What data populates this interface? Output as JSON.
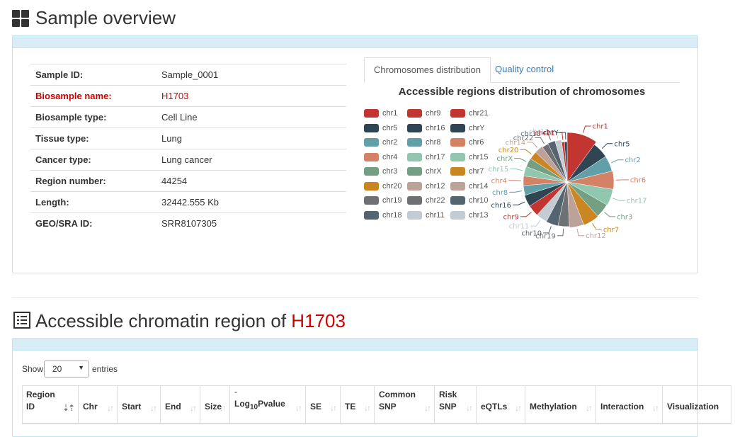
{
  "overview": {
    "title": "Sample overview",
    "info": [
      {
        "label": "Sample ID:",
        "value": "Sample_0001",
        "highlight": false
      },
      {
        "label": "Biosample name:",
        "value": "H1703",
        "highlight": true
      },
      {
        "label": "Biosample type:",
        "value": "Cell Line",
        "highlight": false
      },
      {
        "label": "Tissue type:",
        "value": "Lung",
        "highlight": false
      },
      {
        "label": "Cancer type:",
        "value": "Lung cancer",
        "highlight": false
      },
      {
        "label": "Region number:",
        "value": "44254",
        "highlight": false
      },
      {
        "label": "Length:",
        "value": "32442.555 Kb",
        "highlight": false
      },
      {
        "label": "GEO/SRA ID:",
        "value": "SRR8107305",
        "highlight": false
      }
    ],
    "tabs": [
      {
        "label": "Chromosomes distribution",
        "active": true
      },
      {
        "label": "Quality control",
        "active": false
      }
    ]
  },
  "chart_data": {
    "type": "pie",
    "title": "Accessible regions distribution of chromosomes",
    "legend_position": "left",
    "slices": [
      {
        "name": "chr1",
        "value": 4110,
        "color": "#c23531"
      },
      {
        "name": "chr5",
        "value": 2350,
        "color": "#2f4554"
      },
      {
        "name": "chr2",
        "value": 2300,
        "color": "#61a0a8"
      },
      {
        "name": "chr6",
        "value": 2600,
        "color": "#d48265"
      },
      {
        "name": "chr17",
        "value": 2390,
        "color": "#91c7ae"
      },
      {
        "name": "chr3",
        "value": 2100,
        "color": "#749f83"
      },
      {
        "name": "chr7",
        "value": 2360,
        "color": "#ca8622"
      },
      {
        "name": "chr12",
        "value": 2100,
        "color": "#bda29a"
      },
      {
        "name": "chr19",
        "value": 1700,
        "color": "#6e7074"
      },
      {
        "name": "chr10",
        "value": 1800,
        "color": "#546570"
      },
      {
        "name": "chr11",
        "value": 1700,
        "color": "#c4ccd3"
      },
      {
        "name": "chr9",
        "value": 1700,
        "color": "#c23531"
      },
      {
        "name": "chr16",
        "value": 1740,
        "color": "#2f4554"
      },
      {
        "name": "chr8",
        "value": 1470,
        "color": "#61a0a8"
      },
      {
        "name": "chr4",
        "value": 1450,
        "color": "#d48265"
      },
      {
        "name": "chr15",
        "value": 1450,
        "color": "#91c7ae"
      },
      {
        "name": "chrX",
        "value": 1350,
        "color": "#749f83"
      },
      {
        "name": "chr20",
        "value": 1250,
        "color": "#ca8622"
      },
      {
        "name": "chr14",
        "value": 1300,
        "color": "#bda29a"
      },
      {
        "name": "chr22",
        "value": 1000,
        "color": "#6e7074"
      },
      {
        "name": "chr18",
        "value": 1150,
        "color": "#546570"
      },
      {
        "name": "chr13",
        "value": 1000,
        "color": "#c4ccd3"
      },
      {
        "name": "chr21",
        "value": 450,
        "color": "#c23531"
      },
      {
        "name": "chrY",
        "value": 450,
        "color": "#2f4554"
      }
    ],
    "legend_order": [
      "chr1",
      "chr9",
      "chr21",
      "chr5",
      "chr16",
      "chrY",
      "chr2",
      "chr8",
      "chr6",
      "chr4",
      "chr17",
      "chr15",
      "chr3",
      "chrX",
      "chr7",
      "chr20",
      "chr12",
      "chr14",
      "chr19",
      "chr22",
      "chr10",
      "chr18",
      "chr11",
      "chr13"
    ]
  },
  "regions": {
    "title_prefix": "Accessible chromatin region of ",
    "title_sample": "H1703",
    "show_label": "Show",
    "entries_label": "entries",
    "page_size": "20",
    "columns": [
      {
        "line1": "Region",
        "line2": "ID",
        "sorted": true
      },
      {
        "line1": "",
        "line2": "Chr",
        "sorted": false
      },
      {
        "line1": "",
        "line2": "Start",
        "sorted": false
      },
      {
        "line1": "",
        "line2": "End",
        "sorted": false
      },
      {
        "line1": "",
        "line2": "Size",
        "sorted": false
      },
      {
        "line1": "-",
        "line2": "Log",
        "sub": "10",
        "after": "Pvalue",
        "sorted": false
      },
      {
        "line1": "",
        "line2": "SE",
        "sorted": false
      },
      {
        "line1": "",
        "line2": "TE",
        "sorted": false
      },
      {
        "line1": "Common",
        "line2": "SNP",
        "sorted": false
      },
      {
        "line1": "Risk",
        "line2": "SNP",
        "sorted": false
      },
      {
        "line1": "",
        "line2": "eQTLs",
        "sorted": false
      },
      {
        "line1": "",
        "line2": "Methylation",
        "sorted": false
      },
      {
        "line1": "",
        "line2": "Interaction",
        "sorted": false
      },
      {
        "line1": "",
        "line2": "Visualization",
        "sorted": null
      }
    ]
  },
  "colors": {
    "accent_red": "#cc0000",
    "panel_border": "#bce8f1",
    "panel_heading": "#d9edf7",
    "link": "#337ab7"
  },
  "icons": {
    "overview": "grid-icon",
    "regions": "list-icon"
  }
}
